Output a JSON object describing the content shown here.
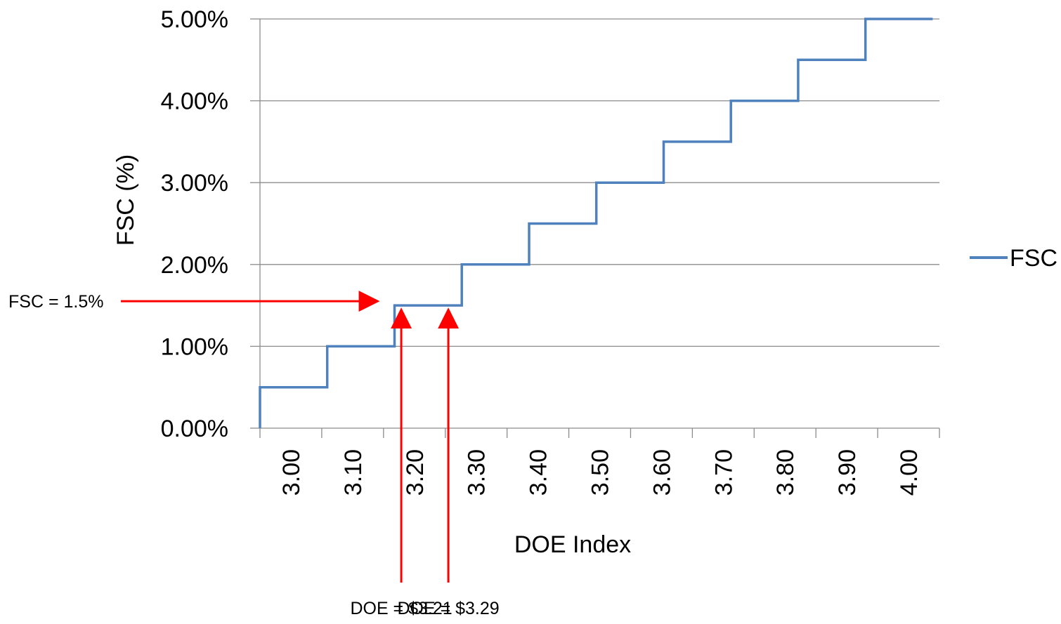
{
  "chart_data": {
    "type": "line",
    "step": true,
    "xlabel": "DOE Index",
    "ylabel": "FSC (%)",
    "xlim": [
      2.99,
      4.0
    ],
    "ylim": [
      0,
      0.05
    ],
    "grid": "horizontal",
    "legend_position": "right",
    "x_ticks": [
      "3.00",
      "3.10",
      "3.20",
      "3.30",
      "3.40",
      "3.50",
      "3.60",
      "3.70",
      "3.80",
      "3.90",
      "4.00"
    ],
    "y_ticks": [
      "0.00%",
      "1.00%",
      "2.00%",
      "3.00%",
      "4.00%",
      "5.00%"
    ],
    "series": [
      {
        "name": "FSC",
        "color": "#4f81bd",
        "x": [
          2.99,
          2.99,
          3.09,
          3.09,
          3.19,
          3.19,
          3.29,
          3.29,
          3.39,
          3.39,
          3.49,
          3.49,
          3.59,
          3.59,
          3.69,
          3.69,
          3.79,
          3.79,
          3.89,
          3.89,
          3.99
        ],
        "y": [
          0,
          0.005,
          0.005,
          0.01,
          0.01,
          0.015,
          0.015,
          0.02,
          0.02,
          0.025,
          0.025,
          0.03,
          0.03,
          0.035,
          0.035,
          0.04,
          0.04,
          0.045,
          0.045,
          0.05,
          0.05
        ]
      }
    ],
    "annotations": [
      {
        "text": "FSC = 1.5%",
        "color": "#ff0000",
        "direction": "right",
        "y": 0.015,
        "x_end": 3.165
      },
      {
        "text": "DOE = $3.21",
        "color": "#ff0000",
        "direction": "up",
        "x": 3.2,
        "y_end": 0.015
      },
      {
        "text": "DOE = $3.29",
        "color": "#ff0000",
        "direction": "up",
        "x": 3.27,
        "y_end": 0.015
      }
    ]
  }
}
